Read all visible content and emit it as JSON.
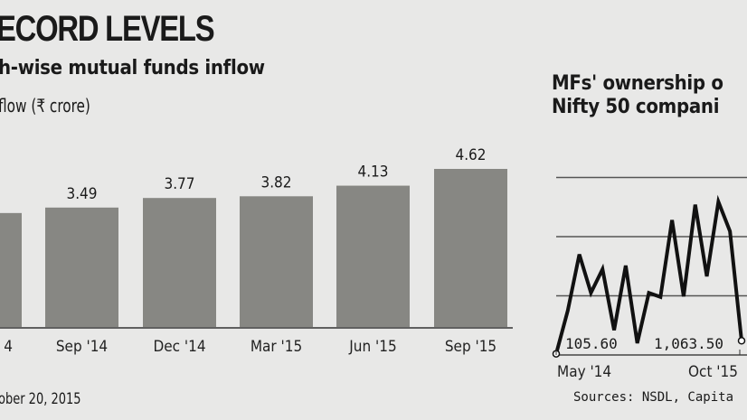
{
  "left_panel": {
    "title": "ECORD LEVELS",
    "subtitle": "h-wise mutual funds inflow",
    "unit": "flow (₹ crore)",
    "footnote": "ober 20, 2015"
  },
  "right_panel": {
    "title_line1": "MFs' ownership o",
    "title_line2": "Nifty 50 compani",
    "sources": "Sources: NSDL, Capita"
  },
  "chart_data": [
    {
      "type": "bar",
      "categories": [
        "4",
        "Sep '14",
        "Dec '14",
        "Mar '15",
        "Jun '15",
        "Sep '15"
      ],
      "values": [
        3.33,
        3.49,
        3.77,
        3.82,
        4.13,
        4.62
      ],
      "data_labels": [
        "",
        "3.49",
        "3.77",
        "3.82",
        "4.13",
        "4.62"
      ],
      "ylim": [
        0,
        4.62
      ],
      "bar_color": "#878783",
      "grid": false
    },
    {
      "type": "line",
      "x_tick_labels": [
        "May '14",
        "Oct '15"
      ],
      "values": [
        0.02,
        0.75,
        1.7,
        1.05,
        1.45,
        0.42,
        1.51,
        0.2,
        1.05,
        0.98,
        2.28,
        0.99,
        2.54,
        1.33,
        2.59,
        2.09,
        0.24
      ],
      "annotations": [
        "105.60",
        "1,063.50"
      ],
      "ylim": [
        0,
        3
      ],
      "grid": true,
      "line_color": "#111111"
    }
  ]
}
